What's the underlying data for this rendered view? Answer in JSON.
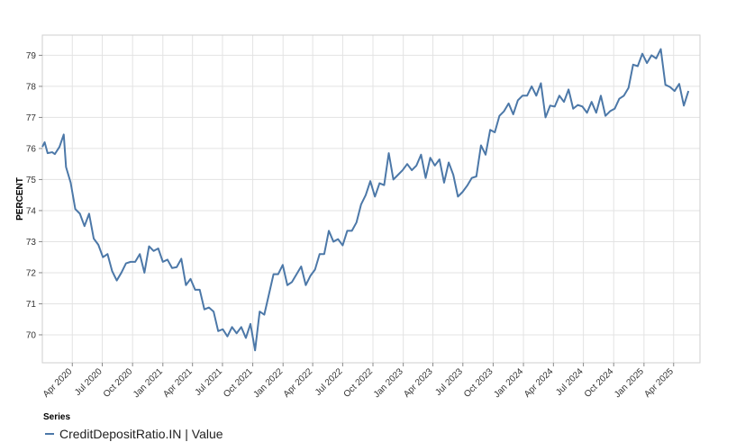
{
  "chart_data": {
    "type": "line",
    "ylabel": "PERCENT",
    "xlabel": "",
    "ylim": [
      69.1,
      79.65
    ],
    "xlim": [
      "2020-01-01",
      "2025-06-20"
    ],
    "grid": true,
    "yticks": [
      70,
      71,
      72,
      73,
      74,
      75,
      76,
      77,
      78,
      79
    ],
    "xticks": [
      {
        "date": "2020-04-01",
        "label": "Apr 2020"
      },
      {
        "date": "2020-07-01",
        "label": "Jul 2020"
      },
      {
        "date": "2020-10-01",
        "label": "Oct 2020"
      },
      {
        "date": "2021-01-01",
        "label": "Jan 2021"
      },
      {
        "date": "2021-04-01",
        "label": "Apr 2021"
      },
      {
        "date": "2021-07-01",
        "label": "Jul 2021"
      },
      {
        "date": "2021-10-01",
        "label": "Oct 2021"
      },
      {
        "date": "2022-01-01",
        "label": "Jan 2022"
      },
      {
        "date": "2022-04-01",
        "label": "Apr 2022"
      },
      {
        "date": "2022-07-01",
        "label": "Jul 2022"
      },
      {
        "date": "2022-10-01",
        "label": "Oct 2022"
      },
      {
        "date": "2023-01-01",
        "label": "Jan 2023"
      },
      {
        "date": "2023-04-01",
        "label": "Apr 2023"
      },
      {
        "date": "2023-07-01",
        "label": "Jul 2023"
      },
      {
        "date": "2023-10-01",
        "label": "Oct 2023"
      },
      {
        "date": "2024-01-01",
        "label": "Jan 2024"
      },
      {
        "date": "2024-04-01",
        "label": "Apr 2024"
      },
      {
        "date": "2024-07-01",
        "label": "Jul 2024"
      },
      {
        "date": "2024-10-01",
        "label": "Oct 2024"
      },
      {
        "date": "2025-01-01",
        "label": "Jan 2025"
      },
      {
        "date": "2025-04-01",
        "label": "Apr 2025"
      }
    ],
    "legend_title": "Series",
    "legend_placement": "bottom-left",
    "series": [
      {
        "name": "CreditDepositRatio.IN | Value",
        "color": "#4c78a8",
        "points": [
          [
            "2020-01-01",
            76.05
          ],
          [
            "2020-01-08",
            76.2
          ],
          [
            "2020-01-17",
            75.85
          ],
          [
            "2020-01-31",
            75.88
          ],
          [
            "2020-02-08",
            75.82
          ],
          [
            "2020-02-22",
            76.05
          ],
          [
            "2020-03-06",
            76.45
          ],
          [
            "2020-03-13",
            75.4
          ],
          [
            "2020-03-27",
            74.9
          ],
          [
            "2020-04-10",
            74.05
          ],
          [
            "2020-04-24",
            73.9
          ],
          [
            "2020-05-08",
            73.5
          ],
          [
            "2020-05-22",
            73.9
          ],
          [
            "2020-06-05",
            73.1
          ],
          [
            "2020-06-19",
            72.9
          ],
          [
            "2020-07-03",
            72.5
          ],
          [
            "2020-07-17",
            72.6
          ],
          [
            "2020-07-31",
            72.05
          ],
          [
            "2020-08-14",
            71.75
          ],
          [
            "2020-08-28",
            72.0
          ],
          [
            "2020-09-11",
            72.3
          ],
          [
            "2020-09-25",
            72.35
          ],
          [
            "2020-10-09",
            72.35
          ],
          [
            "2020-10-23",
            72.6
          ],
          [
            "2020-11-06",
            72.0
          ],
          [
            "2020-11-20",
            72.85
          ],
          [
            "2020-12-04",
            72.7
          ],
          [
            "2020-12-18",
            72.78
          ],
          [
            "2021-01-01",
            72.35
          ],
          [
            "2021-01-15",
            72.42
          ],
          [
            "2021-01-29",
            72.15
          ],
          [
            "2021-02-12",
            72.18
          ],
          [
            "2021-02-26",
            72.45
          ],
          [
            "2021-03-12",
            71.6
          ],
          [
            "2021-03-26",
            71.8
          ],
          [
            "2021-04-09",
            71.45
          ],
          [
            "2021-04-23",
            71.45
          ],
          [
            "2021-05-07",
            70.82
          ],
          [
            "2021-05-21",
            70.88
          ],
          [
            "2021-06-04",
            70.75
          ],
          [
            "2021-06-18",
            70.12
          ],
          [
            "2021-07-02",
            70.18
          ],
          [
            "2021-07-16",
            69.95
          ],
          [
            "2021-07-30",
            70.25
          ],
          [
            "2021-08-13",
            70.05
          ],
          [
            "2021-08-27",
            70.25
          ],
          [
            "2021-09-10",
            69.9
          ],
          [
            "2021-09-24",
            70.35
          ],
          [
            "2021-10-08",
            69.5
          ],
          [
            "2021-10-22",
            70.75
          ],
          [
            "2021-11-05",
            70.65
          ],
          [
            "2021-11-19",
            71.3
          ],
          [
            "2021-12-03",
            71.95
          ],
          [
            "2021-12-17",
            71.95
          ],
          [
            "2021-12-31",
            72.25
          ],
          [
            "2022-01-14",
            71.6
          ],
          [
            "2022-01-28",
            71.7
          ],
          [
            "2022-02-11",
            71.95
          ],
          [
            "2022-02-25",
            72.2
          ],
          [
            "2022-03-11",
            71.6
          ],
          [
            "2022-03-25",
            71.9
          ],
          [
            "2022-04-08",
            72.1
          ],
          [
            "2022-04-22",
            72.6
          ],
          [
            "2022-05-06",
            72.6
          ],
          [
            "2022-05-20",
            73.35
          ],
          [
            "2022-06-03",
            73.0
          ],
          [
            "2022-06-17",
            73.08
          ],
          [
            "2022-07-01",
            72.88
          ],
          [
            "2022-07-15",
            73.35
          ],
          [
            "2022-07-29",
            73.35
          ],
          [
            "2022-08-12",
            73.62
          ],
          [
            "2022-08-26",
            74.2
          ],
          [
            "2022-09-09",
            74.5
          ],
          [
            "2022-09-23",
            74.95
          ],
          [
            "2022-10-07",
            74.45
          ],
          [
            "2022-10-21",
            74.88
          ],
          [
            "2022-11-04",
            74.82
          ],
          [
            "2022-11-18",
            75.85
          ],
          [
            "2022-12-02",
            75.0
          ],
          [
            "2022-12-16",
            75.15
          ],
          [
            "2022-12-30",
            75.3
          ],
          [
            "2023-01-13",
            75.5
          ],
          [
            "2023-01-27",
            75.3
          ],
          [
            "2023-02-10",
            75.45
          ],
          [
            "2023-02-24",
            75.8
          ],
          [
            "2023-03-10",
            75.05
          ],
          [
            "2023-03-24",
            75.7
          ],
          [
            "2023-04-07",
            75.45
          ],
          [
            "2023-04-21",
            75.65
          ],
          [
            "2023-05-05",
            74.9
          ],
          [
            "2023-05-19",
            75.55
          ],
          [
            "2023-06-02",
            75.15
          ],
          [
            "2023-06-16",
            74.45
          ],
          [
            "2023-06-30",
            74.6
          ],
          [
            "2023-07-14",
            74.8
          ],
          [
            "2023-07-28",
            75.05
          ],
          [
            "2023-08-11",
            75.1
          ],
          [
            "2023-08-25",
            76.1
          ],
          [
            "2023-09-08",
            75.8
          ],
          [
            "2023-09-22",
            76.6
          ],
          [
            "2023-10-06",
            76.52
          ],
          [
            "2023-10-20",
            77.05
          ],
          [
            "2023-11-03",
            77.2
          ],
          [
            "2023-11-17",
            77.45
          ],
          [
            "2023-12-01",
            77.1
          ],
          [
            "2023-12-15",
            77.55
          ],
          [
            "2023-12-29",
            77.7
          ],
          [
            "2024-01-12",
            77.7
          ],
          [
            "2024-01-26",
            78.0
          ],
          [
            "2024-02-09",
            77.7
          ],
          [
            "2024-02-23",
            78.1
          ],
          [
            "2024-03-08",
            77.0
          ],
          [
            "2024-03-22",
            77.38
          ],
          [
            "2024-04-05",
            77.35
          ],
          [
            "2024-04-19",
            77.7
          ],
          [
            "2024-05-03",
            77.5
          ],
          [
            "2024-05-17",
            77.9
          ],
          [
            "2024-05-31",
            77.28
          ],
          [
            "2024-06-14",
            77.4
          ],
          [
            "2024-06-28",
            77.35
          ],
          [
            "2024-07-12",
            77.15
          ],
          [
            "2024-07-26",
            77.5
          ],
          [
            "2024-08-09",
            77.15
          ],
          [
            "2024-08-23",
            77.7
          ],
          [
            "2024-09-06",
            77.05
          ],
          [
            "2024-09-20",
            77.2
          ],
          [
            "2024-10-04",
            77.28
          ],
          [
            "2024-10-18",
            77.6
          ],
          [
            "2024-11-01",
            77.7
          ],
          [
            "2024-11-15",
            77.95
          ],
          [
            "2024-11-29",
            78.7
          ],
          [
            "2024-12-13",
            78.65
          ],
          [
            "2024-12-27",
            79.05
          ],
          [
            "2025-01-10",
            78.75
          ],
          [
            "2025-01-24",
            79.0
          ],
          [
            "2025-02-07",
            78.9
          ],
          [
            "2025-02-21",
            79.2
          ],
          [
            "2025-03-07",
            78.05
          ],
          [
            "2025-03-21",
            77.98
          ],
          [
            "2025-04-04",
            77.85
          ],
          [
            "2025-04-18",
            78.08
          ],
          [
            "2025-05-02",
            77.38
          ],
          [
            "2025-05-16",
            77.85
          ]
        ]
      }
    ]
  }
}
